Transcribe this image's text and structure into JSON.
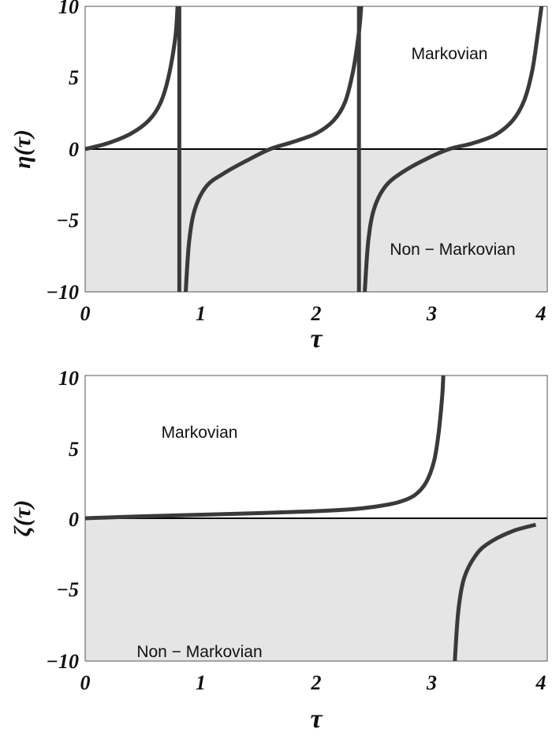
{
  "chart_data": [
    {
      "type": "line",
      "ylabel": "η(τ)",
      "xlabel": "τ",
      "xlim": [
        0,
        4
      ],
      "ylim": [
        -10,
        10
      ],
      "x_ticks": [
        "0",
        "1",
        "2",
        "3",
        "4"
      ],
      "y_ticks": [
        "10",
        "5",
        "0",
        "−5",
        "−10"
      ],
      "shaded_region": "y < 0",
      "labels": {
        "positive_region": "Markovian",
        "negative_region": "Non − Markovian"
      },
      "series": [
        {
          "points": [
            [
              0.0,
              0.0
            ],
            [
              0.2,
              0.42
            ],
            [
              0.4,
              1.1
            ],
            [
              0.55,
              2.0
            ],
            [
              0.65,
              3.2
            ],
            [
              0.72,
              5.0
            ],
            [
              0.78,
              7.8
            ],
            [
              0.8,
              10
            ]
          ]
        },
        {
          "points": [
            [
              0.815,
              10
            ],
            [
              0.815,
              -10
            ]
          ]
        },
        {
          "points": [
            [
              0.87,
              -10
            ],
            [
              0.9,
              -6.5
            ],
            [
              0.95,
              -4.2
            ],
            [
              1.05,
              -2.6
            ],
            [
              1.2,
              -1.7
            ],
            [
              1.4,
              -0.8
            ],
            [
              1.6,
              0.0
            ],
            [
              1.8,
              0.5
            ],
            [
              2.0,
              1.1
            ],
            [
              2.15,
              2.0
            ],
            [
              2.25,
              3.3
            ],
            [
              2.32,
              5.5
            ],
            [
              2.37,
              8.2
            ],
            [
              2.39,
              10
            ]
          ]
        },
        {
          "points": [
            [
              2.37,
              10
            ],
            [
              2.37,
              -10
            ]
          ]
        },
        {
          "points": [
            [
              2.42,
              -10
            ],
            [
              2.45,
              -6.5
            ],
            [
              2.5,
              -4.2
            ],
            [
              2.6,
              -2.6
            ],
            [
              2.75,
              -1.6
            ],
            [
              2.95,
              -0.7
            ],
            [
              3.15,
              0.0
            ],
            [
              3.35,
              0.4
            ],
            [
              3.55,
              1.0
            ],
            [
              3.7,
              2.0
            ],
            [
              3.8,
              3.4
            ],
            [
              3.87,
              5.5
            ],
            [
              3.92,
              8.2
            ],
            [
              3.95,
              10
            ]
          ]
        }
      ]
    },
    {
      "type": "line",
      "ylabel": "ζ(τ)",
      "xlabel": "τ",
      "xlim": [
        0,
        4
      ],
      "ylim": [
        -10,
        10
      ],
      "x_ticks": [
        "0",
        "1",
        "2",
        "3",
        "4"
      ],
      "y_ticks": [
        "10",
        "5",
        "0",
        "−5",
        "−10"
      ],
      "shaded_region": "y < 0",
      "labels": {
        "positive_region": "Markovian",
        "negative_region": "Non − Markovian"
      },
      "series": [
        {
          "points": [
            [
              0.0,
              0.0
            ],
            [
              0.5,
              0.14
            ],
            [
              1.0,
              0.25
            ],
            [
              1.5,
              0.36
            ],
            [
              2.0,
              0.5
            ],
            [
              2.3,
              0.63
            ],
            [
              2.5,
              0.8
            ],
            [
              2.7,
              1.1
            ],
            [
              2.85,
              1.6
            ],
            [
              2.95,
              2.5
            ],
            [
              3.02,
              4.0
            ],
            [
              3.06,
              6.0
            ],
            [
              3.09,
              8.5
            ],
            [
              3.1,
              10
            ]
          ]
        },
        {
          "points": [
            [
              3.2,
              -10
            ],
            [
              3.23,
              -6.5
            ],
            [
              3.28,
              -4.2
            ],
            [
              3.38,
              -2.6
            ],
            [
              3.5,
              -1.7
            ],
            [
              3.7,
              -0.9
            ],
            [
              3.9,
              -0.45
            ]
          ]
        }
      ]
    }
  ]
}
